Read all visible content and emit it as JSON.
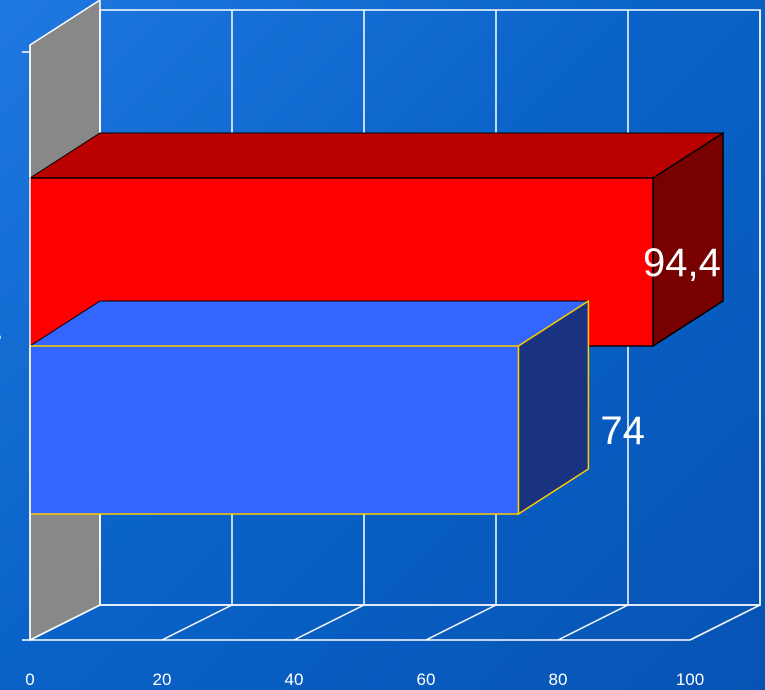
{
  "chart_data": {
    "type": "bar",
    "orientation": "horizontal",
    "style": "3d",
    "title": "",
    "xlabel": "",
    "ylabel": "",
    "xlim": [
      0,
      100
    ],
    "x_ticks": [
      "0",
      "20",
      "40",
      "60",
      "80",
      "100"
    ],
    "grid": true,
    "legend": "none",
    "bars": [
      {
        "value": 94.4,
        "label": "94,4",
        "color": "#ff0000",
        "top_color": "#bb0000",
        "side_color": "#770000"
      },
      {
        "value": 74,
        "label": "74",
        "color": "#3366ff",
        "top_color": "#3366ff",
        "side_color": "#1a3380",
        "edge_color": "#ffcc00"
      }
    ],
    "floor_color": "#6e6e6e",
    "wall_color": "#888888",
    "cropped_category_labels": [
      "r",
      "i"
    ]
  }
}
